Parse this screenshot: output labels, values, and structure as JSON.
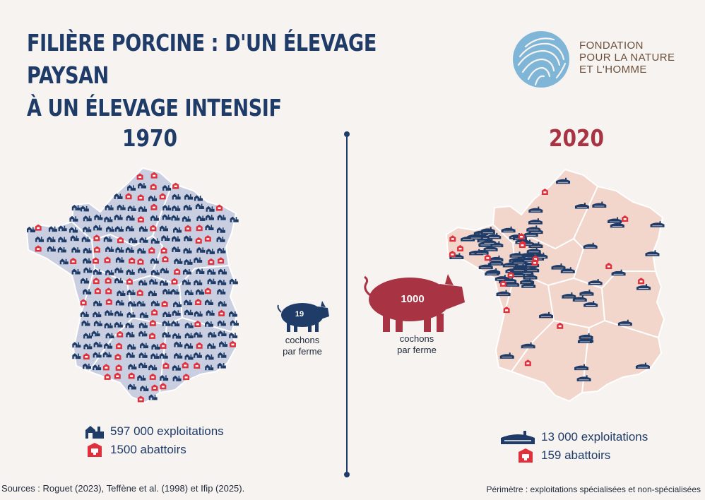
{
  "title": {
    "line1": "FILIÈRE PORCINE : D'UN ÉLEVAGE PAYSAN",
    "line2": "À UN ÉLEVAGE INTENSIF"
  },
  "logo": {
    "line1": "FONDATION",
    "line2": "POUR LA NATURE",
    "line3": "ET L'HOMME",
    "icon": "fingerprint-globe-icon"
  },
  "colors": {
    "navy": "#1f3c68",
    "red": "#a83343",
    "bright_red": "#e0303c",
    "map_1970": "#c9cfe0",
    "map_2020": "#f2d6cc"
  },
  "left": {
    "year": "1970",
    "pig_value": "19",
    "pig_caption_line1": "cochons",
    "pig_caption_line2": "par ferme",
    "farms_label": "597 000 exploitations",
    "abattoirs_label": "1500 abattoirs"
  },
  "right": {
    "year": "2020",
    "pig_value": "1000",
    "pig_caption_line1": "cochons",
    "pig_caption_line2": "par ferme",
    "farms_label": "13 000 exploitations",
    "abattoirs_label": "159 abattoirs"
  },
  "footer": {
    "sources": "Sources : Roguet (2023), Teffène et al. (1998) et Ifip (2025).",
    "perimetre": "Périmètre : exploitations spécialisées et non-spécialisées"
  }
}
